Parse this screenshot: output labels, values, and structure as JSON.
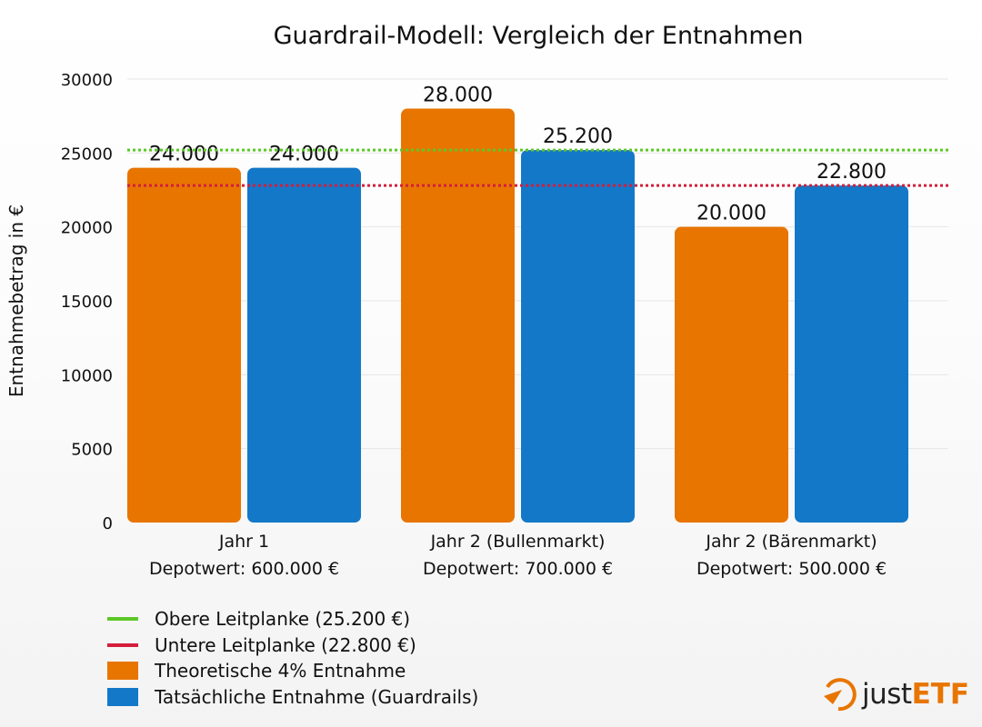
{
  "chart_data": {
    "type": "bar",
    "title": "Guardrail-Modell: Vergleich der Entnahmen",
    "ylabel": "Entnahmebetrag in €",
    "xlabel": "",
    "ylim": [
      0,
      30000
    ],
    "yticks": [
      0,
      5000,
      10000,
      15000,
      20000,
      25000,
      30000
    ],
    "grid": true,
    "categories": [
      [
        "Jahr 1",
        "Depotwert: 600.000 €"
      ],
      [
        "Jahr 2 (Bullenmarkt)",
        "Depotwert: 700.000 €"
      ],
      [
        "Jahr 2 (Bärenmarkt)",
        "Depotwert: 500.000 €"
      ]
    ],
    "series": [
      {
        "name": "Theoretische 4% Entnahme",
        "color": "#E87500",
        "values": [
          24000,
          28000,
          20000
        ],
        "labels": [
          "24.000",
          "28.000",
          "20.000"
        ]
      },
      {
        "name": "Tatsächliche Entnahme (Guardrails)",
        "color": "#1478C8",
        "values": [
          24000,
          25200,
          22800
        ],
        "labels": [
          "24.000",
          "25.200",
          "22.800"
        ]
      }
    ],
    "reference_lines": [
      {
        "name": "Obere Leitplanke (25.200 €)",
        "value": 25200,
        "color": "#5CC828",
        "style": "dotted"
      },
      {
        "name": "Untere Leitplanke (22.800 €)",
        "value": 22800,
        "color": "#D41E3C",
        "style": "dotted"
      }
    ],
    "legend_placement": "bottom-left"
  },
  "logo": {
    "text_a": "just",
    "text_b": "ETF",
    "color": "#E87500"
  }
}
